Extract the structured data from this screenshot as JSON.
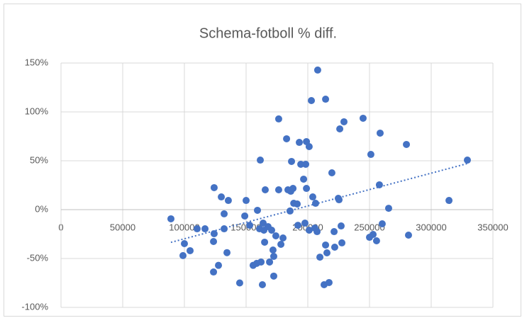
{
  "chart_data": {
    "type": "scatter",
    "title": "Schema-fotboll % diff.",
    "color": "#4472c4",
    "trendline": "linear",
    "grid": true,
    "xlim": [
      0,
      350000
    ],
    "xticks": [
      0,
      50000,
      100000,
      150000,
      200000,
      250000,
      300000,
      350000
    ],
    "ylim": [
      -100,
      150
    ],
    "yticks": [
      {
        "value": -100,
        "label": "-100%"
      },
      {
        "value": -50,
        "label": "-50%"
      },
      {
        "value": 0,
        "label": "0%"
      },
      {
        "value": 50,
        "label": "50%"
      },
      {
        "value": 100,
        "label": "100%"
      },
      {
        "value": 150,
        "label": "150%"
      }
    ],
    "x": [
      89080,
      100000,
      98850,
      104600,
      110300,
      116700,
      124100,
      124100,
      123600,
      123600,
      127600,
      129900,
      132200,
      132200,
      135600,
      134500,
      144800,
      148900,
      150000,
      152900,
      155700,
      158600,
      159200,
      161500,
      160900,
      162100,
      163200,
      163800,
      164400,
      165000,
      165500,
      167800,
      169000,
      170700,
      171800,
      172400,
      172400,
      174100,
      176400,
      176400,
      178200,
      179900,
      182800,
      183900,
      185600,
      186200,
      186800,
      188000,
      188600,
      191400,
      192000,
      193100,
      194300,
      196600,
      197700,
      198300,
      198900,
      198900,
      201100,
      201100,
      202900,
      204000,
      205700,
      206300,
      208000,
      207500,
      209800,
      213200,
      214400,
      214400,
      215500,
      217200,
      219500,
      221300,
      221800,
      224700,
      225900,
      227000,
      227600,
      229300,
      225300,
      244800,
      250000,
      251100,
      252900,
      255700,
      258000,
      258600,
      260300,
      265500,
      279900,
      281600,
      314400,
      329300
    ],
    "values": [
      -9.4,
      -34.8,
      -47,
      -42,
      -19.6,
      -19.6,
      22.5,
      -24.6,
      -32.6,
      -63.8,
      -57,
      13,
      -4.3,
      -19.6,
      9.4,
      -44,
      -75,
      -6.5,
      9.4,
      -16,
      -57,
      -55,
      -0.7,
      50.7,
      -19.6,
      -53.6,
      -76.8,
      -13.8,
      -21,
      -33.3,
      20.3,
      -17.4,
      -53.6,
      -21,
      -41.3,
      -47.8,
      -68,
      -26.8,
      92.8,
      20.3,
      -35.5,
      -29,
      72.5,
      20.3,
      -1.4,
      18.8,
      49.3,
      21.7,
      6.5,
      5.8,
      -16,
      68.8,
      46.4,
      31.2,
      -13.8,
      46.4,
      21.7,
      69.6,
      64.5,
      -21,
      111.6,
      13,
      -18.8,
      6.5,
      142.8,
      -22.5,
      -48.6,
      -76.8,
      -36.2,
      113,
      -44.2,
      -74.6,
      37.7,
      -22.5,
      -38.4,
      11.6,
      82.6,
      -16.7,
      -34,
      89.9,
      10.1,
      93.5,
      -28.3,
      56.5,
      -25.4,
      -31.9,
      25.4,
      78.3,
      -14.5,
      1.4,
      66.7,
      -26.1,
      9.4,
      50.7
    ]
  }
}
